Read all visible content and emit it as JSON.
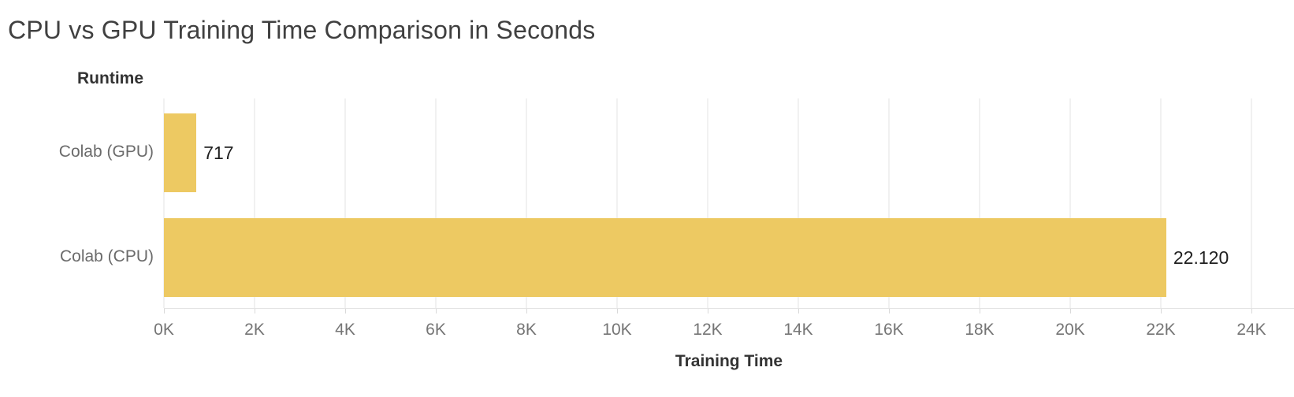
{
  "title": "CPU vs GPU Training Time Comparison in Seconds",
  "chart_data": {
    "type": "bar",
    "orientation": "horizontal",
    "title": "CPU vs GPU Training Time Comparison in Seconds",
    "row_header": "Runtime",
    "xlabel": "Training Time",
    "ylabel": "Runtime",
    "categories": [
      "Colab (GPU)",
      "Colab (CPU)"
    ],
    "values": [
      717,
      22120
    ],
    "value_labels": [
      "717",
      "22.120"
    ],
    "x_tick_values": [
      0,
      2000,
      4000,
      6000,
      8000,
      10000,
      12000,
      14000,
      16000,
      18000,
      20000,
      22000,
      24000
    ],
    "x_tick_labels": [
      "0K",
      "2K",
      "4K",
      "6K",
      "8K",
      "10K",
      "12K",
      "14K",
      "16K",
      "18K",
      "20K",
      "22K",
      "24K"
    ],
    "xlim": [
      0,
      24940
    ],
    "grid": true,
    "legend": false,
    "colors": {
      "bar": "#EDC962",
      "gridline": "#f1f1f1",
      "axis_line": "#e3e3e3",
      "value_label": "#1f1f1f",
      "category_label": "#6b6b6b",
      "tick_label": "#757575",
      "title": "#404040"
    }
  }
}
